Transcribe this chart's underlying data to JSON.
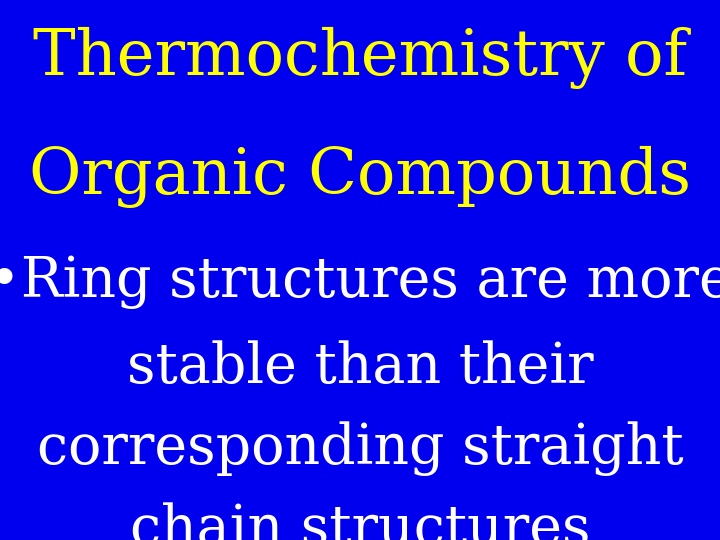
{
  "background_color": "#0000ee",
  "title_line1": "Thermochemistry of",
  "title_line2": "Organic Compounds",
  "title_color": "#ffff00",
  "title_fontsize": 46,
  "bullet_line1": "•Ring structures are more",
  "bullet_line2": "stable than their",
  "bullet_line3": "corresponding straight",
  "bullet_line4": "chain structures",
  "bullet_color": "#ffffff",
  "bullet_fontsize": 40,
  "font_family": "DejaVu Serif",
  "fontstyle": "normal",
  "fontweight": "normal"
}
